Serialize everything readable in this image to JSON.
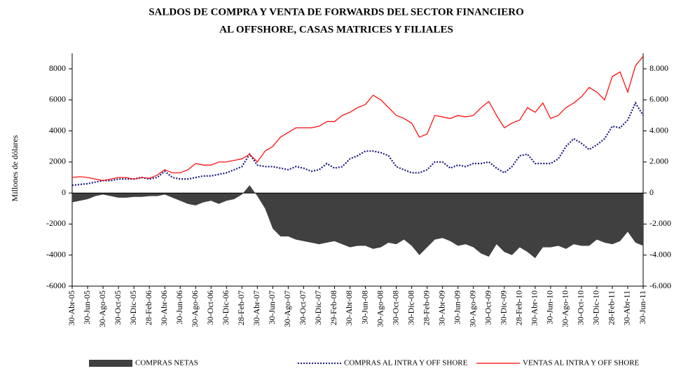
{
  "chart_data": {
    "type": "line",
    "title": "SALDOS DE COMPRA Y VENTA DE FORWARDS DEL SECTOR FINANCIERO",
    "subtitle": "AL OFFSHORE, CASAS MATRICES Y FILIALES",
    "y_label": "Millones de dólares",
    "categories": [
      "30-Abr-05",
      null,
      "30-Jun-05",
      null,
      "30-Ago-05",
      null,
      "30-Oct-05",
      null,
      "30-Dic-05",
      null,
      "28-Feb-06",
      null,
      "30-Abr-06",
      null,
      "30-Jun-06",
      null,
      "30-Ago-06",
      null,
      "30-Oct-06",
      null,
      "30-Dic-06",
      null,
      "28-Feb-07",
      null,
      "30-Abr-07",
      null,
      "30-Jun-07",
      null,
      "30-Ago-07",
      null,
      "30-Oct-07",
      null,
      "30-Dic-07",
      null,
      "29-Feb-08",
      null,
      "30-Abr-08",
      null,
      "30-Jun-08",
      null,
      "30-Ago-08",
      null,
      "30-Oct-08",
      null,
      "30-Dic-08",
      null,
      "28-Feb-09",
      null,
      "30-Abr-09",
      null,
      "30-Jun-09",
      null,
      "30-Ago-09",
      null,
      "30-Oct-09",
      null,
      "30-Dic-09",
      null,
      "28-Feb-10",
      null,
      "30-Abr-10",
      null,
      "30-Jun-10",
      null,
      "30-Ago-10",
      null,
      "30-Oct-10",
      null,
      "30-Dic-10",
      null,
      "28-Feb-11",
      null,
      "30-Abr-11",
      null,
      "30-Jun-11"
    ],
    "ylim": [
      -6000,
      9000
    ],
    "yticks": [
      -6000,
      -4000,
      -2000,
      0,
      2000,
      4000,
      6000,
      8000
    ],
    "y2lim": [
      -6000,
      9000
    ],
    "y2ticks": [
      {
        "value": -6000,
        "label": "-6.000"
      },
      {
        "value": -4000,
        "label": "-4.000"
      },
      {
        "value": -2000,
        "label": "-2.000"
      },
      0,
      {
        "value": 2000,
        "label": "2.000"
      },
      {
        "value": 4000,
        "label": "4.000"
      },
      {
        "value": 6000,
        "label": "6.000"
      },
      {
        "value": 8000,
        "label": "8.000"
      }
    ],
    "legend": "bottom",
    "series": [
      {
        "name": "COMPRAS NETAS",
        "kind": "area",
        "color": "#404040",
        "values": [
          -600,
          -500,
          -400,
          -200,
          -100,
          -200,
          -300,
          -300,
          -250,
          -250,
          -200,
          -200,
          -100,
          -300,
          -500,
          -700,
          -800,
          -600,
          -500,
          -700,
          -500,
          -400,
          -100,
          500,
          -200,
          -1000,
          -2300,
          -2800,
          -2800,
          -3000,
          -3100,
          -3200,
          -3300,
          -3200,
          -3100,
          -3300,
          -3500,
          -3400,
          -3400,
          -3600,
          -3500,
          -3200,
          -3300,
          -3000,
          -3400,
          -4000,
          -3500,
          -3000,
          -2900,
          -3100,
          -3400,
          -3300,
          -3500,
          -3900,
          -4100,
          -3300,
          -3800,
          -4000,
          -3500,
          -3800,
          -4200,
          -3500,
          -3500,
          -3400,
          -3600,
          -3300,
          -3400,
          -3400,
          -3000,
          -3200,
          -3300,
          -3100,
          -2500,
          -3200,
          -3400
        ]
      },
      {
        "name": "COMPRAS AL INTRA Y OFF SHORE",
        "kind": "dotted",
        "color": "#1a1a80",
        "values": [
          500,
          550,
          600,
          700,
          800,
          800,
          900,
          900,
          900,
          1000,
          900,
          1000,
          1400,
          1000,
          900,
          900,
          1000,
          1100,
          1100,
          1200,
          1300,
          1500,
          1700,
          2500,
          1800,
          1700,
          1700,
          1600,
          1500,
          1700,
          1600,
          1400,
          1500,
          1900,
          1600,
          1700,
          2200,
          2400,
          2700,
          2700,
          2600,
          2400,
          1700,
          1500,
          1300,
          1300,
          1500,
          2000,
          2000,
          1600,
          1800,
          1700,
          1900,
          1900,
          2000,
          1600,
          1300,
          1700,
          2400,
          2500,
          1900,
          1900,
          1900,
          2200,
          3000,
          3500,
          3200,
          2800,
          3100,
          3500,
          4300,
          4200,
          4700,
          5800,
          5000
        ]
      },
      {
        "name": "VENTAS AL INTRA Y OFF SHORE",
        "kind": "line",
        "color": "#ff0000",
        "values": [
          1000,
          1050,
          1000,
          900,
          800,
          900,
          1000,
          1000,
          900,
          1000,
          950,
          1150,
          1500,
          1300,
          1300,
          1500,
          1900,
          1800,
          1800,
          2000,
          2000,
          2100,
          2200,
          2500,
          2000,
          2700,
          3000,
          3600,
          3900,
          4200,
          4200,
          4200,
          4300,
          4600,
          4600,
          5000,
          5200,
          5500,
          5700,
          6300,
          6000,
          5500,
          5000,
          4800,
          4500,
          3600,
          3800,
          5000,
          4900,
          4800,
          5000,
          4900,
          5000,
          5500,
          5900,
          5000,
          4200,
          4500,
          4700,
          5500,
          5200,
          5800,
          4800,
          5000,
          5500,
          5800,
          6200,
          6800,
          6500,
          6000,
          7500,
          7800,
          6500,
          8200,
          8800
        ]
      }
    ]
  }
}
